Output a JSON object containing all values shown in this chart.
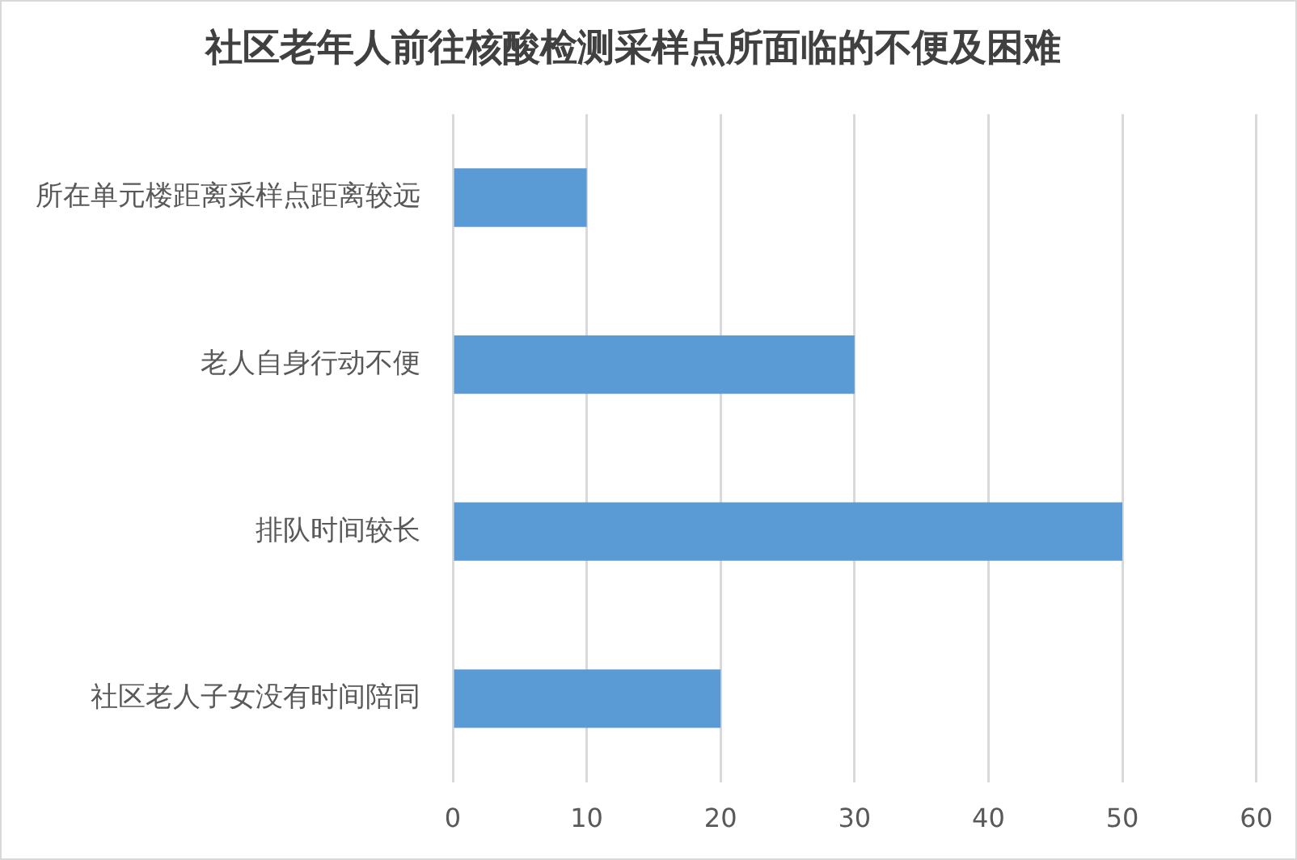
{
  "chart_data": {
    "type": "bar",
    "orientation": "horizontal",
    "title": "社区老年人前往核酸检测采样点所面临的不便及困难",
    "categories": [
      "所在单元楼距离采样点距离较远",
      "老人自身行动不便",
      "排队时间较长",
      "社区老人子女没有时间陪同"
    ],
    "values": [
      10,
      30,
      50,
      20
    ],
    "color": "#5b9bd5",
    "xlim": [
      0,
      60
    ],
    "xticks": [
      0,
      10,
      20,
      30,
      40,
      50,
      60
    ],
    "grid": "x"
  }
}
